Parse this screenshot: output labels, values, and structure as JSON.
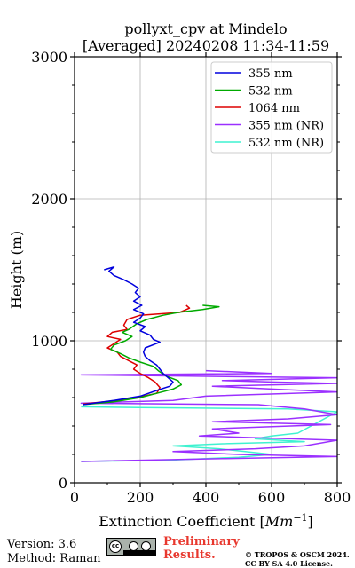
{
  "chart_data": {
    "type": "line",
    "title": "pollyxt_cpv at Mindelo",
    "subtitle": "[Averaged] 20240208 11:34-11:59",
    "xlabel": "Extinction Coefficient [",
    "xlabel_unit": "Mm",
    "xlabel_exp": "−1",
    "xlabel_close": "]",
    "ylabel": "Height (m)",
    "xlim": [
      0,
      800
    ],
    "ylim": [
      0,
      3000
    ],
    "xticks": [
      0,
      200,
      400,
      600,
      800
    ],
    "xtick_labels": [
      "0",
      "200",
      "400",
      "600",
      "800"
    ],
    "yticks": [
      0,
      1000,
      2000,
      3000
    ],
    "ytick_labels": [
      "0",
      "1000",
      "2000",
      "3000"
    ],
    "grid": true,
    "legend_position": "top-right",
    "series": [
      {
        "name": "355 nm",
        "color": "#0000dd",
        "points": [
          [
            25,
            550
          ],
          [
            120,
            580
          ],
          [
            200,
            610
          ],
          [
            250,
            650
          ],
          [
            290,
            680
          ],
          [
            300,
            710
          ],
          [
            285,
            740
          ],
          [
            270,
            770
          ],
          [
            260,
            800
          ],
          [
            250,
            830
          ],
          [
            230,
            860
          ],
          [
            215,
            890
          ],
          [
            210,
            920
          ],
          [
            215,
            950
          ],
          [
            260,
            990
          ],
          [
            240,
            1010
          ],
          [
            230,
            1040
          ],
          [
            200,
            1070
          ],
          [
            215,
            1100
          ],
          [
            180,
            1130
          ],
          [
            200,
            1160
          ],
          [
            210,
            1190
          ],
          [
            180,
            1220
          ],
          [
            205,
            1250
          ],
          [
            180,
            1280
          ],
          [
            200,
            1310
          ],
          [
            185,
            1340
          ],
          [
            195,
            1370
          ],
          [
            175,
            1400
          ],
          [
            150,
            1430
          ],
          [
            120,
            1460
          ],
          [
            105,
            1490
          ],
          [
            120,
            1520
          ],
          [
            90,
            1500
          ]
        ]
      },
      {
        "name": "532 nm",
        "color": "#00aa00",
        "points": [
          [
            25,
            550
          ],
          [
            120,
            570
          ],
          [
            200,
            600
          ],
          [
            250,
            630
          ],
          [
            300,
            660
          ],
          [
            325,
            690
          ],
          [
            315,
            720
          ],
          [
            280,
            750
          ],
          [
            255,
            790
          ],
          [
            240,
            820
          ],
          [
            200,
            850
          ],
          [
            165,
            880
          ],
          [
            140,
            910
          ],
          [
            110,
            940
          ],
          [
            120,
            970
          ],
          [
            155,
            1000
          ],
          [
            175,
            1030
          ],
          [
            145,
            1060
          ],
          [
            165,
            1080
          ],
          [
            190,
            1120
          ],
          [
            220,
            1150
          ],
          [
            270,
            1180
          ],
          [
            315,
            1200
          ],
          [
            390,
            1220
          ],
          [
            440,
            1240
          ],
          [
            390,
            1250
          ]
        ]
      },
      {
        "name": "1064 nm",
        "color": "#dd0000",
        "points": [
          [
            25,
            555
          ],
          [
            110,
            575
          ],
          [
            190,
            600
          ],
          [
            250,
            630
          ],
          [
            260,
            670
          ],
          [
            245,
            710
          ],
          [
            225,
            740
          ],
          [
            200,
            770
          ],
          [
            180,
            800
          ],
          [
            190,
            830
          ],
          [
            165,
            860
          ],
          [
            140,
            890
          ],
          [
            130,
            920
          ],
          [
            100,
            950
          ],
          [
            120,
            980
          ],
          [
            140,
            1010
          ],
          [
            100,
            1030
          ],
          [
            115,
            1060
          ],
          [
            160,
            1080
          ],
          [
            150,
            1110
          ],
          [
            160,
            1150
          ],
          [
            200,
            1180
          ],
          [
            260,
            1190
          ],
          [
            320,
            1200
          ],
          [
            350,
            1230
          ],
          [
            340,
            1250
          ]
        ]
      },
      {
        "name": "355 nm (NR)",
        "color": "#9b30ff",
        "points": [
          [
            20,
            150
          ],
          [
            450,
            170
          ],
          [
            800,
            185
          ],
          [
            500,
            200
          ],
          [
            300,
            220
          ],
          [
            550,
            240
          ],
          [
            700,
            260
          ],
          [
            800,
            300
          ],
          [
            380,
            330
          ],
          [
            500,
            350
          ],
          [
            420,
            380
          ],
          [
            780,
            410
          ],
          [
            420,
            430
          ],
          [
            650,
            450
          ],
          [
            800,
            480
          ],
          [
            700,
            520
          ],
          [
            560,
            550
          ],
          [
            20,
            560
          ],
          [
            300,
            580
          ],
          [
            400,
            610
          ],
          [
            800,
            640
          ],
          [
            600,
            660
          ],
          [
            420,
            680
          ],
          [
            800,
            700
          ],
          [
            600,
            710
          ],
          [
            450,
            720
          ],
          [
            800,
            740
          ],
          [
            20,
            760
          ],
          [
            600,
            770
          ],
          [
            400,
            790
          ]
        ]
      },
      {
        "name": "532 nm (NR)",
        "color": "#3ff2d0",
        "points": [
          [
            20,
            150
          ],
          [
            300,
            160
          ],
          [
            500,
            180
          ],
          [
            600,
            200
          ],
          [
            520,
            220
          ],
          [
            440,
            240
          ],
          [
            300,
            260
          ],
          [
            450,
            275
          ],
          [
            700,
            290
          ],
          [
            550,
            310
          ],
          [
            600,
            330
          ],
          [
            680,
            350
          ],
          [
            800,
            500
          ],
          [
            650,
            520
          ],
          [
            200,
            530
          ],
          [
            20,
            535
          ]
        ]
      }
    ]
  },
  "footer": {
    "version": "Version: 3.6",
    "method": "Method: Raman",
    "cc_label": "cc",
    "cc_strip": "BY SA",
    "preliminary_line1": "Preliminary",
    "preliminary_line2": "Results.",
    "copyright_line1": "© TROPOS & OSCM 2024.",
    "copyright_line2": "CC BY SA 4.0 License."
  }
}
